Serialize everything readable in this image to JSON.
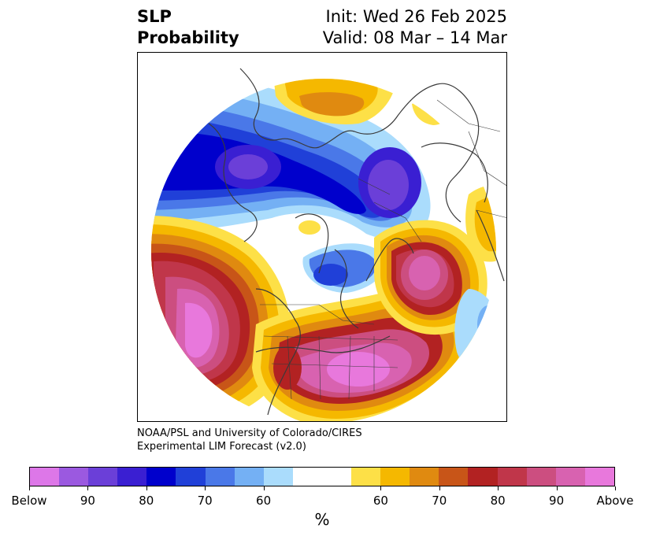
{
  "title": {
    "left_line1": "SLP",
    "left_line2": "Probability",
    "right_line1": "Init: Wed 26 Feb 2025",
    "right_line2": "Valid: 08 Mar – 14 Mar"
  },
  "credit": {
    "line1": "NOAA/PSL and University of Colorado/CIRES",
    "line2": "Experimental LIM Forecast (v2.0)"
  },
  "colorbar": {
    "colors": [
      "#dd77e8",
      "#9b59e0",
      "#6b3fd8",
      "#3a1fd2",
      "#0000cc",
      "#2040d8",
      "#4a78e8",
      "#74b0f4",
      "#aadcfc",
      "#ffffff",
      "#ffffff",
      "#fde047",
      "#f5b800",
      "#e08a10",
      "#c85518",
      "#b22222",
      "#c0364a",
      "#cc4e80",
      "#d862b0",
      "#e878dc"
    ],
    "tick_labels": [
      "Below",
      "90",
      "80",
      "70",
      "60",
      "60",
      "70",
      "80",
      "90",
      "Above"
    ],
    "unit": "%"
  },
  "map": {
    "projection": "north-polar-stereographic",
    "below_color_scale": "blue-purple",
    "above_color_scale": "yellow-red-magenta"
  }
}
